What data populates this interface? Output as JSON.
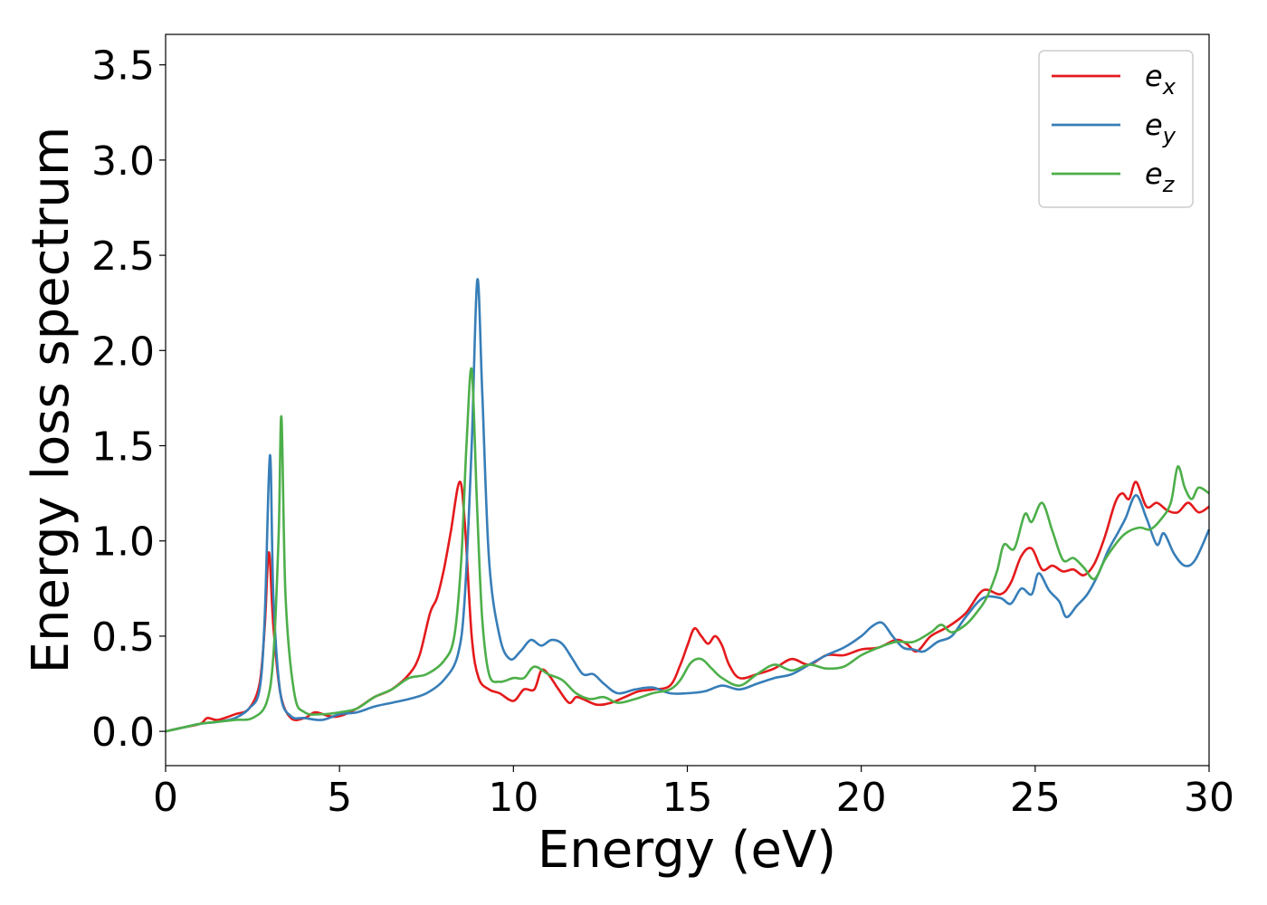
{
  "chart_data": {
    "type": "line",
    "title": "",
    "xlabel": "Energy (eV)",
    "ylabel": "Energy loss spectrum",
    "xlim": [
      0,
      30
    ],
    "ylim": [
      -0.18,
      3.66
    ],
    "xticks": [
      0,
      5,
      10,
      15,
      20,
      25,
      30
    ],
    "yticks": [
      0.0,
      0.5,
      1.0,
      1.5,
      2.0,
      2.5,
      3.0,
      3.5
    ],
    "grid": false,
    "legend_position": "top-right",
    "series": [
      {
        "name": "e_x",
        "legend_base": "e",
        "legend_sub": "x",
        "color": "#e41a1c",
        "points": [
          [
            0,
            0.0
          ],
          [
            0.5,
            0.02
          ],
          [
            1.0,
            0.04
          ],
          [
            1.2,
            0.07
          ],
          [
            1.5,
            0.06
          ],
          [
            2.0,
            0.09
          ],
          [
            2.4,
            0.12
          ],
          [
            2.7,
            0.25
          ],
          [
            2.85,
            0.55
          ],
          [
            2.97,
            0.94
          ],
          [
            3.1,
            0.55
          ],
          [
            3.3,
            0.2
          ],
          [
            3.6,
            0.07
          ],
          [
            4.0,
            0.07
          ],
          [
            4.3,
            0.1
          ],
          [
            4.7,
            0.08
          ],
          [
            5.0,
            0.08
          ],
          [
            5.5,
            0.12
          ],
          [
            6.0,
            0.18
          ],
          [
            6.5,
            0.22
          ],
          [
            7.0,
            0.3
          ],
          [
            7.3,
            0.4
          ],
          [
            7.6,
            0.62
          ],
          [
            7.8,
            0.7
          ],
          [
            8.0,
            0.85
          ],
          [
            8.2,
            1.05
          ],
          [
            8.45,
            1.31
          ],
          [
            8.6,
            1.1
          ],
          [
            8.8,
            0.5
          ],
          [
            9.0,
            0.28
          ],
          [
            9.3,
            0.22
          ],
          [
            9.6,
            0.2
          ],
          [
            10.0,
            0.16
          ],
          [
            10.3,
            0.22
          ],
          [
            10.6,
            0.22
          ],
          [
            10.8,
            0.32
          ],
          [
            11.0,
            0.3
          ],
          [
            11.3,
            0.22
          ],
          [
            11.6,
            0.15
          ],
          [
            11.8,
            0.18
          ],
          [
            12.0,
            0.17
          ],
          [
            12.4,
            0.14
          ],
          [
            12.8,
            0.15
          ],
          [
            13.2,
            0.18
          ],
          [
            13.6,
            0.21
          ],
          [
            14.0,
            0.22
          ],
          [
            14.5,
            0.24
          ],
          [
            14.8,
            0.35
          ],
          [
            15.0,
            0.45
          ],
          [
            15.2,
            0.54
          ],
          [
            15.4,
            0.5
          ],
          [
            15.6,
            0.46
          ],
          [
            15.8,
            0.5
          ],
          [
            16.0,
            0.45
          ],
          [
            16.2,
            0.35
          ],
          [
            16.5,
            0.28
          ],
          [
            17.0,
            0.3
          ],
          [
            17.5,
            0.33
          ],
          [
            18.0,
            0.38
          ],
          [
            18.5,
            0.35
          ],
          [
            19.0,
            0.4
          ],
          [
            19.5,
            0.4
          ],
          [
            20.0,
            0.43
          ],
          [
            20.5,
            0.44
          ],
          [
            21.0,
            0.48
          ],
          [
            21.3,
            0.46
          ],
          [
            21.6,
            0.42
          ],
          [
            22.0,
            0.5
          ],
          [
            22.5,
            0.55
          ],
          [
            23.0,
            0.62
          ],
          [
            23.5,
            0.74
          ],
          [
            24.0,
            0.72
          ],
          [
            24.3,
            0.78
          ],
          [
            24.6,
            0.92
          ],
          [
            24.9,
            0.96
          ],
          [
            25.2,
            0.85
          ],
          [
            25.5,
            0.87
          ],
          [
            25.8,
            0.84
          ],
          [
            26.1,
            0.85
          ],
          [
            26.4,
            0.82
          ],
          [
            26.7,
            0.88
          ],
          [
            27.0,
            1.02
          ],
          [
            27.3,
            1.2
          ],
          [
            27.5,
            1.25
          ],
          [
            27.7,
            1.22
          ],
          [
            27.9,
            1.31
          ],
          [
            28.2,
            1.18
          ],
          [
            28.5,
            1.2
          ],
          [
            28.8,
            1.16
          ],
          [
            29.1,
            1.15
          ],
          [
            29.4,
            1.2
          ],
          [
            29.7,
            1.15
          ],
          [
            30.0,
            1.18
          ]
        ]
      },
      {
        "name": "e_y",
        "legend_base": "e",
        "legend_sub": "y",
        "color": "#377eb8",
        "points": [
          [
            0,
            0.0
          ],
          [
            0.5,
            0.02
          ],
          [
            1.0,
            0.04
          ],
          [
            1.5,
            0.05
          ],
          [
            2.0,
            0.07
          ],
          [
            2.4,
            0.12
          ],
          [
            2.7,
            0.22
          ],
          [
            2.85,
            0.6
          ],
          [
            3.0,
            1.45
          ],
          [
            3.1,
            0.7
          ],
          [
            3.3,
            0.2
          ],
          [
            3.6,
            0.08
          ],
          [
            4.0,
            0.07
          ],
          [
            4.5,
            0.06
          ],
          [
            5.0,
            0.09
          ],
          [
            5.5,
            0.1
          ],
          [
            6.0,
            0.13
          ],
          [
            6.5,
            0.15
          ],
          [
            7.0,
            0.17
          ],
          [
            7.5,
            0.2
          ],
          [
            8.0,
            0.27
          ],
          [
            8.4,
            0.4
          ],
          [
            8.6,
            0.7
          ],
          [
            8.8,
            1.5
          ],
          [
            8.96,
            2.37
          ],
          [
            9.1,
            1.8
          ],
          [
            9.3,
            0.9
          ],
          [
            9.6,
            0.5
          ],
          [
            9.9,
            0.38
          ],
          [
            10.2,
            0.42
          ],
          [
            10.5,
            0.48
          ],
          [
            10.8,
            0.45
          ],
          [
            11.1,
            0.48
          ],
          [
            11.4,
            0.46
          ],
          [
            11.7,
            0.38
          ],
          [
            12.0,
            0.3
          ],
          [
            12.3,
            0.3
          ],
          [
            12.6,
            0.25
          ],
          [
            13.0,
            0.2
          ],
          [
            13.5,
            0.22
          ],
          [
            14.0,
            0.23
          ],
          [
            14.5,
            0.2
          ],
          [
            15.0,
            0.2
          ],
          [
            15.5,
            0.21
          ],
          [
            16.0,
            0.24
          ],
          [
            16.5,
            0.22
          ],
          [
            17.0,
            0.25
          ],
          [
            17.5,
            0.28
          ],
          [
            18.0,
            0.3
          ],
          [
            18.5,
            0.35
          ],
          [
            19.0,
            0.4
          ],
          [
            19.5,
            0.44
          ],
          [
            20.0,
            0.5
          ],
          [
            20.3,
            0.55
          ],
          [
            20.6,
            0.57
          ],
          [
            20.9,
            0.5
          ],
          [
            21.2,
            0.44
          ],
          [
            21.5,
            0.43
          ],
          [
            21.8,
            0.42
          ],
          [
            22.2,
            0.47
          ],
          [
            22.6,
            0.5
          ],
          [
            23.0,
            0.6
          ],
          [
            23.5,
            0.7
          ],
          [
            24.0,
            0.7
          ],
          [
            24.3,
            0.67
          ],
          [
            24.6,
            0.75
          ],
          [
            24.9,
            0.72
          ],
          [
            25.1,
            0.83
          ],
          [
            25.4,
            0.74
          ],
          [
            25.7,
            0.68
          ],
          [
            25.9,
            0.6
          ],
          [
            26.2,
            0.66
          ],
          [
            26.5,
            0.72
          ],
          [
            26.8,
            0.82
          ],
          [
            27.1,
            0.95
          ],
          [
            27.4,
            1.05
          ],
          [
            27.6,
            1.12
          ],
          [
            27.9,
            1.24
          ],
          [
            28.2,
            1.12
          ],
          [
            28.5,
            0.98
          ],
          [
            28.7,
            1.04
          ],
          [
            29.0,
            0.93
          ],
          [
            29.3,
            0.87
          ],
          [
            29.6,
            0.9
          ],
          [
            30.0,
            1.06
          ]
        ]
      },
      {
        "name": "e_z",
        "legend_base": "e",
        "legend_sub": "z",
        "color": "#4daf4a",
        "points": [
          [
            0,
            0.0
          ],
          [
            0.5,
            0.02
          ],
          [
            1.0,
            0.04
          ],
          [
            1.5,
            0.05
          ],
          [
            2.0,
            0.06
          ],
          [
            2.5,
            0.07
          ],
          [
            2.9,
            0.15
          ],
          [
            3.1,
            0.4
          ],
          [
            3.25,
            1.03
          ],
          [
            3.33,
            1.65
          ],
          [
            3.45,
            0.7
          ],
          [
            3.7,
            0.2
          ],
          [
            4.0,
            0.1
          ],
          [
            4.5,
            0.09
          ],
          [
            5.0,
            0.1
          ],
          [
            5.5,
            0.12
          ],
          [
            6.0,
            0.18
          ],
          [
            6.5,
            0.22
          ],
          [
            7.0,
            0.28
          ],
          [
            7.5,
            0.3
          ],
          [
            8.0,
            0.37
          ],
          [
            8.3,
            0.5
          ],
          [
            8.5,
            0.9
          ],
          [
            8.65,
            1.5
          ],
          [
            8.8,
            1.9
          ],
          [
            8.95,
            1.2
          ],
          [
            9.1,
            0.6
          ],
          [
            9.3,
            0.3
          ],
          [
            9.6,
            0.26
          ],
          [
            10.0,
            0.28
          ],
          [
            10.3,
            0.28
          ],
          [
            10.6,
            0.34
          ],
          [
            11.0,
            0.3
          ],
          [
            11.4,
            0.27
          ],
          [
            11.8,
            0.2
          ],
          [
            12.2,
            0.17
          ],
          [
            12.6,
            0.18
          ],
          [
            13.0,
            0.15
          ],
          [
            13.5,
            0.17
          ],
          [
            14.0,
            0.2
          ],
          [
            14.5,
            0.22
          ],
          [
            14.8,
            0.27
          ],
          [
            15.1,
            0.36
          ],
          [
            15.4,
            0.38
          ],
          [
            15.7,
            0.33
          ],
          [
            16.0,
            0.28
          ],
          [
            16.5,
            0.24
          ],
          [
            17.0,
            0.3
          ],
          [
            17.5,
            0.35
          ],
          [
            18.0,
            0.32
          ],
          [
            18.5,
            0.35
          ],
          [
            19.0,
            0.33
          ],
          [
            19.5,
            0.34
          ],
          [
            20.0,
            0.4
          ],
          [
            20.5,
            0.44
          ],
          [
            21.0,
            0.47
          ],
          [
            21.5,
            0.47
          ],
          [
            22.0,
            0.52
          ],
          [
            22.3,
            0.56
          ],
          [
            22.6,
            0.52
          ],
          [
            23.0,
            0.56
          ],
          [
            23.3,
            0.62
          ],
          [
            23.6,
            0.7
          ],
          [
            23.9,
            0.84
          ],
          [
            24.1,
            0.98
          ],
          [
            24.4,
            0.96
          ],
          [
            24.7,
            1.14
          ],
          [
            24.9,
            1.1
          ],
          [
            25.2,
            1.2
          ],
          [
            25.5,
            1.05
          ],
          [
            25.8,
            0.9
          ],
          [
            26.1,
            0.91
          ],
          [
            26.4,
            0.86
          ],
          [
            26.7,
            0.8
          ],
          [
            27.0,
            0.9
          ],
          [
            27.3,
            0.98
          ],
          [
            27.6,
            1.04
          ],
          [
            28.0,
            1.07
          ],
          [
            28.3,
            1.06
          ],
          [
            28.6,
            1.11
          ],
          [
            28.9,
            1.2
          ],
          [
            29.1,
            1.39
          ],
          [
            29.3,
            1.28
          ],
          [
            29.5,
            1.22
          ],
          [
            29.7,
            1.28
          ],
          [
            30.0,
            1.25
          ]
        ]
      }
    ]
  }
}
